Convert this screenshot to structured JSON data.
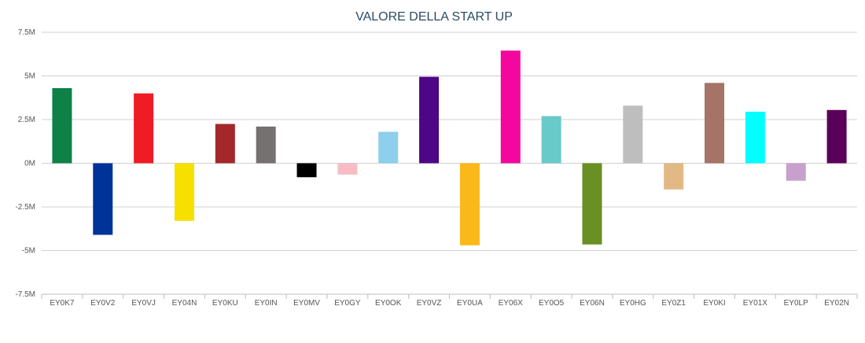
{
  "chart_data": {
    "type": "bar",
    "title": "VALORE DELLA START UP",
    "xlabel": "",
    "ylabel": "",
    "ylim": [
      -7500000,
      7500000
    ],
    "yticks": [
      {
        "value": 7500000,
        "label": "7.5M"
      },
      {
        "value": 5000000,
        "label": "5M"
      },
      {
        "value": 2500000,
        "label": "2.5M"
      },
      {
        "value": 0,
        "label": "0M"
      },
      {
        "value": -2500000,
        "label": "-2.5M"
      },
      {
        "value": -5000000,
        "label": "-5M"
      },
      {
        "value": -7500000,
        "label": "-7.5M"
      }
    ],
    "grid": true,
    "legend": "none",
    "categories": [
      "EY0K7",
      "EY0V2",
      "EY0VJ",
      "EY04N",
      "EY0KU",
      "EY0IN",
      "EY0MV",
      "EY0GY",
      "EY0OK",
      "EY0VZ",
      "EY0UA",
      "EY06X",
      "EY0O5",
      "EY06N",
      "EY0HG",
      "EY0Z1",
      "EY0KI",
      "EY01X",
      "EY0LP",
      "EY02N"
    ],
    "values": [
      4300000,
      -4100000,
      4000000,
      -3300000,
      2250000,
      2100000,
      -800000,
      -650000,
      1800000,
      4950000,
      -4700000,
      6450000,
      2700000,
      -4650000,
      3300000,
      -1500000,
      4600000,
      2950000,
      -1000000,
      3050000
    ],
    "colors": [
      "#0e8146",
      "#003399",
      "#ee1c25",
      "#f7e000",
      "#a4272b",
      "#757170",
      "#000000",
      "#f8bcc6",
      "#8dcfec",
      "#4d0786",
      "#fbb819",
      "#f3079d",
      "#68cac9",
      "#6a8f22",
      "#bebebe",
      "#e2b984",
      "#a57466",
      "#00ffff",
      "#c7a0cb",
      "#5a0058"
    ]
  }
}
